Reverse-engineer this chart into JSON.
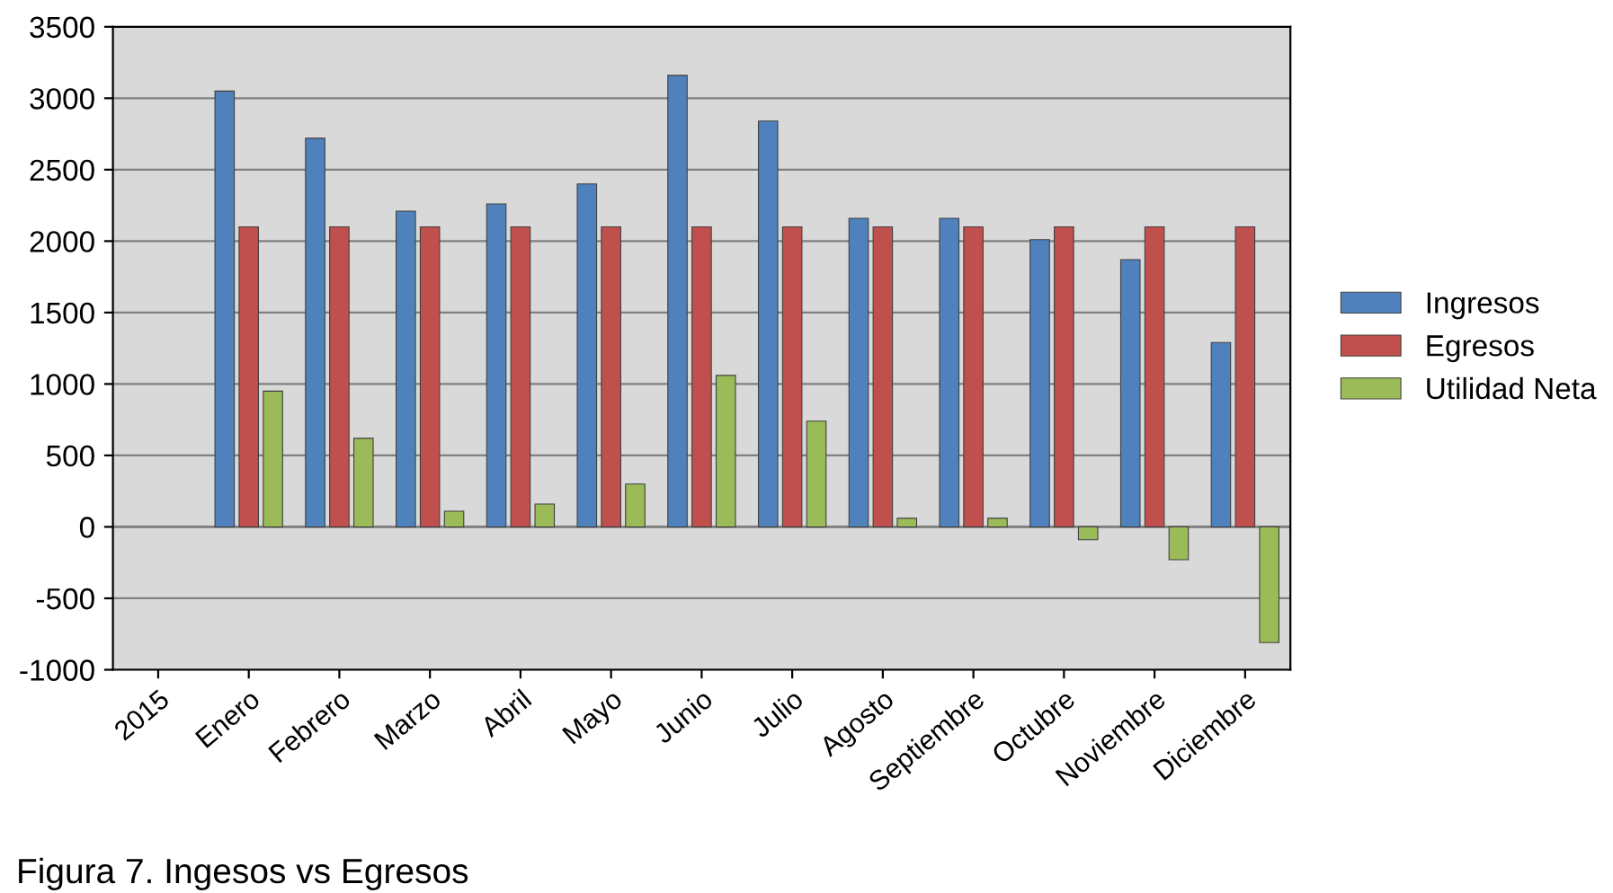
{
  "chart_data": {
    "type": "bar",
    "categories": [
      "2015",
      "Enero",
      "Febrero",
      "Marzo",
      "Abril",
      "Mayo",
      "Junio",
      "Julio",
      "Agosto",
      "Septiembre",
      "Octubre",
      "Noviembre",
      "Diciembre"
    ],
    "series": [
      {
        "name": "Ingresos",
        "color": "#4f81bd",
        "values": [
          null,
          3050,
          2720,
          2210,
          2260,
          2400,
          3160,
          2840,
          2160,
          2160,
          2010,
          1870,
          1290
        ]
      },
      {
        "name": "Egresos",
        "color": "#c0504d",
        "values": [
          null,
          2100,
          2100,
          2100,
          2100,
          2100,
          2100,
          2100,
          2100,
          2100,
          2100,
          2100,
          2100
        ]
      },
      {
        "name": "Utilidad Neta",
        "color": "#9bbb59",
        "values": [
          null,
          950,
          620,
          110,
          160,
          300,
          1060,
          740,
          60,
          60,
          -90,
          -230,
          -810
        ]
      }
    ],
    "ylim": [
      -1000,
      3500
    ],
    "yticks": [
      -1000,
      -500,
      0,
      500,
      1000,
      1500,
      2000,
      2500,
      3000,
      3500
    ],
    "grid": "y",
    "legend": "right",
    "annotations": [
      "Figura 7. Ingesos vs Egresos"
    ]
  }
}
